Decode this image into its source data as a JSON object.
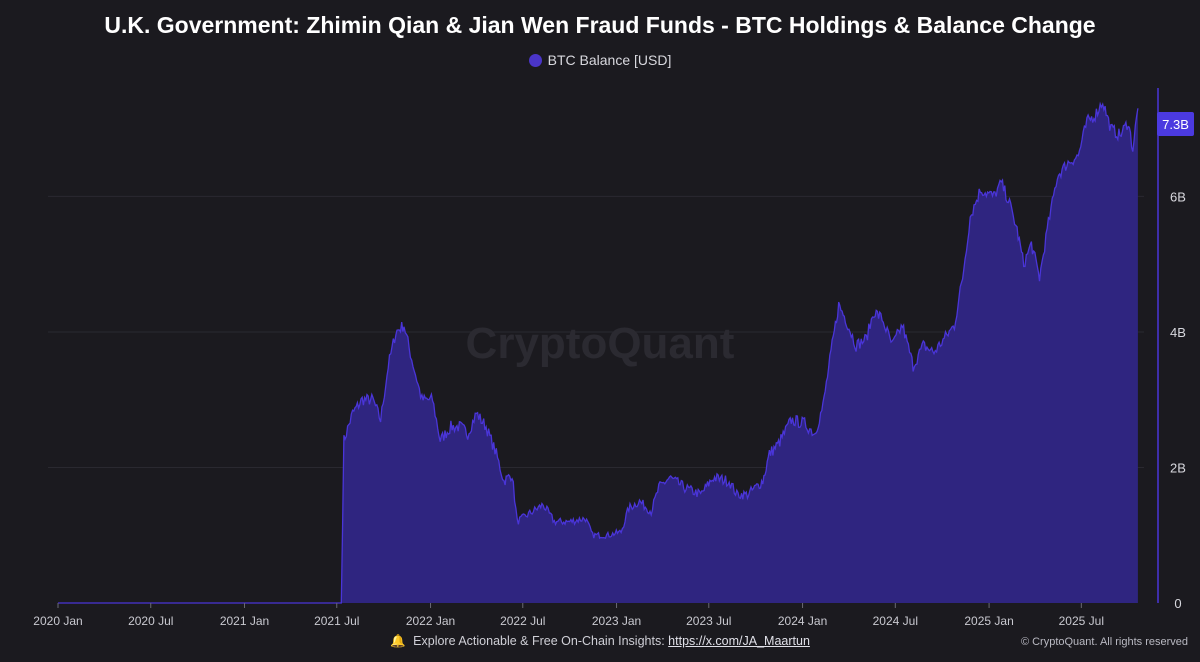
{
  "title": "U.K. Government: Zhimin Qian & Jian Wen Fraud Funds - BTC Holdings & Balance Change",
  "watermark": "CryptoQuant",
  "footer": {
    "bell_icon": "bell-icon",
    "explore_text": "Explore Actionable & Free On-Chain Insights:",
    "link_text": "https://x.com/JA_Maartun",
    "copyright": "© CryptoQuant. All rights reserved"
  },
  "colors": {
    "background": "#1b1a1f",
    "area_fill": "#2f2580",
    "line": "#4a35d8",
    "badge": "#4b3ae0"
  },
  "chart_data": {
    "type": "area",
    "title": "U.K. Government: Zhimin Qian & Jian Wen Fraud Funds - BTC Holdings & Balance Change",
    "xlabel": "",
    "ylabel": "",
    "x_ticks": [
      "2020 Jan",
      "2020 Jul",
      "2021 Jan",
      "2021 Jul",
      "2022 Jan",
      "2022 Jul",
      "2023 Jan",
      "2023 Jul",
      "2024 Jan",
      "2024 Jul",
      "2025 Jan",
      "2025 Jul"
    ],
    "y_ticks": [
      {
        "value": 0,
        "label": "0"
      },
      {
        "value": 2,
        "label": "2B"
      },
      {
        "value": 4,
        "label": "4B"
      },
      {
        "value": 6,
        "label": "6B"
      }
    ],
    "y_unit": "B USD",
    "ylim": [
      0,
      7.6
    ],
    "xlim": [
      "2020-01-01",
      "2025-11-01"
    ],
    "grid": true,
    "legend_position": "top-center",
    "last_value_label": "7.3B",
    "series": [
      {
        "name": "BTC Balance [USD]",
        "points": [
          [
            "2020-01-01",
            0
          ],
          [
            "2021-07-10",
            0
          ],
          [
            "2021-07-15",
            2.4
          ],
          [
            "2021-08-01",
            2.8
          ],
          [
            "2021-08-20",
            3.0
          ],
          [
            "2021-09-10",
            3.0
          ],
          [
            "2021-09-25",
            2.7
          ],
          [
            "2021-10-10",
            3.5
          ],
          [
            "2021-10-25",
            4.0
          ],
          [
            "2021-11-10",
            4.1
          ],
          [
            "2021-11-25",
            3.6
          ],
          [
            "2021-12-15",
            3.0
          ],
          [
            "2022-01-05",
            3.0
          ],
          [
            "2022-01-20",
            2.4
          ],
          [
            "2022-02-10",
            2.6
          ],
          [
            "2022-03-01",
            2.6
          ],
          [
            "2022-03-15",
            2.5
          ],
          [
            "2022-04-01",
            2.8
          ],
          [
            "2022-04-20",
            2.6
          ],
          [
            "2022-05-10",
            2.2
          ],
          [
            "2022-05-25",
            1.8
          ],
          [
            "2022-06-10",
            1.9
          ],
          [
            "2022-06-20",
            1.2
          ],
          [
            "2022-07-10",
            1.3
          ],
          [
            "2022-08-10",
            1.45
          ],
          [
            "2022-09-01",
            1.2
          ],
          [
            "2022-10-01",
            1.2
          ],
          [
            "2022-11-01",
            1.25
          ],
          [
            "2022-11-15",
            1.0
          ],
          [
            "2022-12-15",
            1.0
          ],
          [
            "2023-01-10",
            1.05
          ],
          [
            "2023-01-25",
            1.4
          ],
          [
            "2023-02-15",
            1.5
          ],
          [
            "2023-03-10",
            1.35
          ],
          [
            "2023-03-25",
            1.7
          ],
          [
            "2023-04-15",
            1.85
          ],
          [
            "2023-05-15",
            1.7
          ],
          [
            "2023-06-15",
            1.6
          ],
          [
            "2023-07-10",
            1.85
          ],
          [
            "2023-08-10",
            1.8
          ],
          [
            "2023-08-25",
            1.6
          ],
          [
            "2023-09-15",
            1.6
          ],
          [
            "2023-10-15",
            1.8
          ],
          [
            "2023-10-28",
            2.2
          ],
          [
            "2023-11-15",
            2.35
          ],
          [
            "2023-12-10",
            2.7
          ],
          [
            "2024-01-05",
            2.65
          ],
          [
            "2024-01-25",
            2.5
          ],
          [
            "2024-02-10",
            2.9
          ],
          [
            "2024-02-28",
            3.8
          ],
          [
            "2024-03-12",
            4.4
          ],
          [
            "2024-03-25",
            4.2
          ],
          [
            "2024-04-15",
            3.8
          ],
          [
            "2024-05-05",
            3.9
          ],
          [
            "2024-05-20",
            4.3
          ],
          [
            "2024-06-05",
            4.2
          ],
          [
            "2024-06-25",
            3.8
          ],
          [
            "2024-07-15",
            4.1
          ],
          [
            "2024-08-05",
            3.5
          ],
          [
            "2024-08-25",
            3.8
          ],
          [
            "2024-09-15",
            3.7
          ],
          [
            "2024-10-05",
            3.9
          ],
          [
            "2024-10-25",
            4.1
          ],
          [
            "2024-11-10",
            4.8
          ],
          [
            "2024-11-25",
            5.7
          ],
          [
            "2024-12-15",
            6.1
          ],
          [
            "2025-01-10",
            6.0
          ],
          [
            "2025-01-25",
            6.2
          ],
          [
            "2025-02-10",
            5.9
          ],
          [
            "2025-02-25",
            5.5
          ],
          [
            "2025-03-10",
            5.0
          ],
          [
            "2025-03-25",
            5.3
          ],
          [
            "2025-04-10",
            4.8
          ],
          [
            "2025-04-25",
            5.5
          ],
          [
            "2025-05-15",
            6.3
          ],
          [
            "2025-06-05",
            6.5
          ],
          [
            "2025-06-25",
            6.6
          ],
          [
            "2025-07-12",
            7.1
          ],
          [
            "2025-07-28",
            7.2
          ],
          [
            "2025-08-12",
            7.4
          ],
          [
            "2025-08-28",
            7.0
          ],
          [
            "2025-09-15",
            6.9
          ],
          [
            "2025-10-01",
            7.1
          ],
          [
            "2025-10-10",
            6.7
          ],
          [
            "2025-10-20",
            7.3
          ]
        ]
      }
    ]
  }
}
